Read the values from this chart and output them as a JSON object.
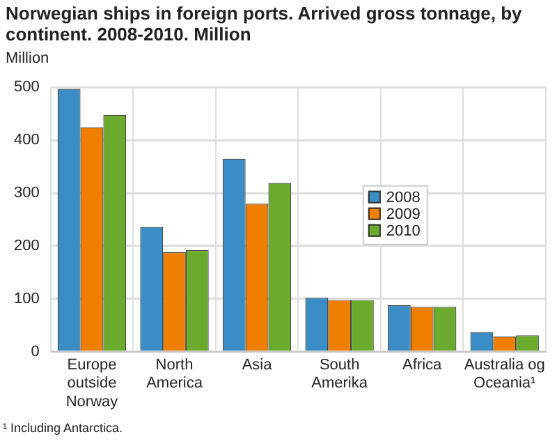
{
  "chart_data": {
    "type": "bar",
    "title": "Norwegian ships in foreign ports. Arrived gross tonnage, by continent. 2008-2010. Million",
    "ylabel": "Million",
    "categories": [
      "Europe outside Norway",
      "North America",
      "Asia",
      "South Amerika",
      "Africa",
      "Australia og Oceania¹"
    ],
    "series": [
      {
        "name": "2008",
        "color": "#3a8dc5",
        "values": [
          497,
          236,
          365,
          102,
          88,
          37
        ]
      },
      {
        "name": "2009",
        "color": "#f07f00",
        "values": [
          424,
          188,
          280,
          98,
          85,
          29
        ]
      },
      {
        "name": "2010",
        "color": "#6aab2e",
        "values": [
          448,
          192,
          319,
          98,
          85,
          31
        ]
      }
    ],
    "ylim": [
      0,
      500
    ],
    "yticks": [
      0,
      100,
      200,
      300,
      400,
      500
    ],
    "grid": true,
    "legend": "right",
    "annotations": [
      "¹ Including Antarctica."
    ]
  }
}
